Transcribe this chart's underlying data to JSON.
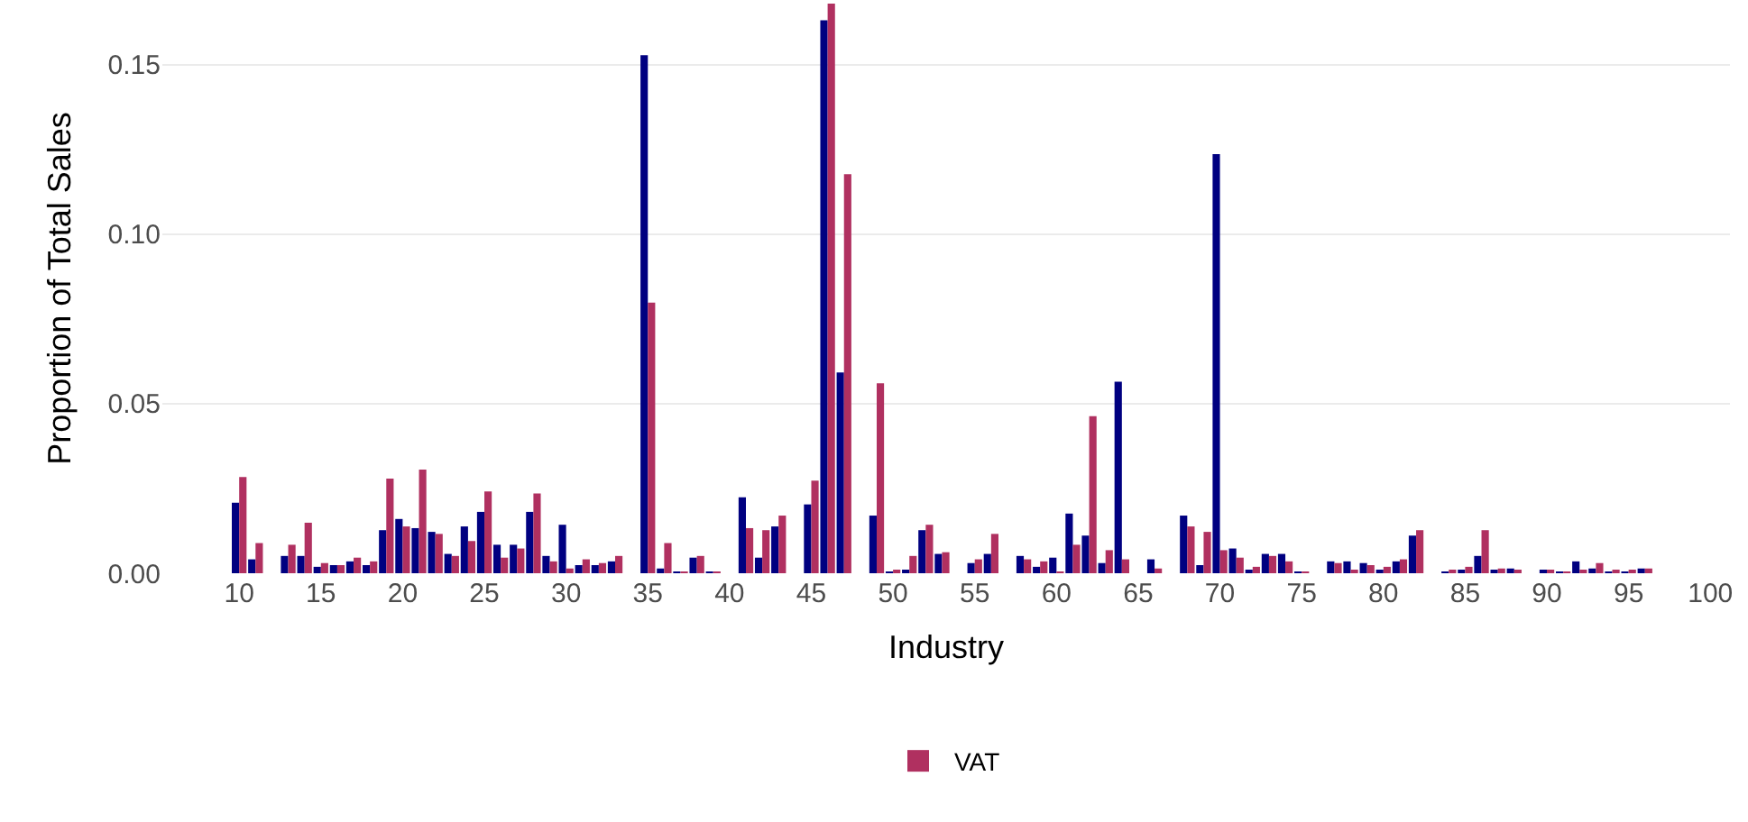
{
  "chart_data": {
    "type": "bar",
    "xlabel": "Industry",
    "ylabel": "Proportion of Total Sales",
    "x": [
      10,
      11,
      13,
      14,
      15,
      16,
      17,
      18,
      19,
      20,
      21,
      22,
      23,
      24,
      25,
      26,
      27,
      28,
      29,
      30,
      31,
      32,
      33,
      35,
      36,
      37,
      38,
      39,
      41,
      42,
      43,
      45,
      46,
      47,
      49,
      50,
      51,
      52,
      53,
      55,
      56,
      58,
      59,
      60,
      61,
      62,
      63,
      64,
      66,
      68,
      69,
      70,
      71,
      72,
      73,
      74,
      75,
      77,
      78,
      79,
      80,
      81,
      82,
      84,
      85,
      86,
      87,
      88,
      90,
      91,
      92,
      93,
      94,
      95,
      96
    ],
    "series": [
      {
        "color": "#000080",
        "values": [
          0.0208,
          0.0041,
          0.0051,
          0.0051,
          0.0019,
          0.0024,
          0.0035,
          0.0024,
          0.0127,
          0.016,
          0.0133,
          0.0122,
          0.0057,
          0.0138,
          0.0181,
          0.0084,
          0.0084,
          0.0181,
          0.0051,
          0.0143,
          0.0024,
          0.0024,
          0.0035,
          0.1528,
          0.0014,
          0.0003,
          0.0046,
          0.0003,
          0.0224,
          0.0046,
          0.0138,
          0.0203,
          0.1631,
          0.0592,
          0.017,
          0.0003,
          0.0008,
          0.0127,
          0.0057,
          0.003,
          0.0057,
          0.0051,
          0.0019,
          0.0046,
          0.0176,
          0.0111,
          0.003,
          0.0565,
          0.0041,
          0.017,
          0.0024,
          0.1236,
          0.0073,
          0.0008,
          0.0057,
          0.0057,
          0.0003,
          0.0035,
          0.0035,
          0.003,
          0.0008,
          0.0035,
          0.0111,
          0.0003,
          0.0008,
          0.0051,
          0.0008,
          0.0014,
          0.0008,
          0.0003,
          0.0035,
          0.0014,
          0.0003,
          0.0003,
          0.0014
        ]
      },
      {
        "name": "VAT",
        "color": "#b03060",
        "values": [
          0.0284,
          0.0089,
          0.0084,
          0.0149,
          0.003,
          0.0024,
          0.0046,
          0.0035,
          0.0279,
          0.0138,
          0.0306,
          0.0116,
          0.0051,
          0.0095,
          0.0241,
          0.0046,
          0.0073,
          0.0235,
          0.0035,
          0.0014,
          0.0041,
          0.003,
          0.0051,
          0.0798,
          0.0089,
          0.0003,
          0.0051,
          0.0003,
          0.0133,
          0.0127,
          0.017,
          0.0273,
          0.168,
          0.1177,
          0.056,
          0.0008,
          0.0051,
          0.0143,
          0.0062,
          0.0041,
          0.0116,
          0.0041,
          0.0035,
          0.0003,
          0.0084,
          0.0463,
          0.0068,
          0.0041,
          0.0014,
          0.0138,
          0.0122,
          0.0068,
          0.0046,
          0.0019,
          0.0051,
          0.0035,
          0.0003,
          0.003,
          0.0008,
          0.0024,
          0.0019,
          0.0041,
          0.0127,
          0.0008,
          0.0019,
          0.0127,
          0.0014,
          0.0008,
          0.0008,
          0.0003,
          0.0008,
          0.003,
          0.0008,
          0.0008,
          0.0014
        ]
      }
    ],
    "xlim": [
      5.3,
      101.2
    ],
    "xticks": [
      10,
      15,
      20,
      25,
      30,
      35,
      40,
      45,
      50,
      55,
      60,
      65,
      70,
      75,
      80,
      85,
      90,
      95,
      100
    ],
    "ylim": [
      0,
      0.168
    ],
    "yticks": [
      {
        "value": 0,
        "label": "0.00"
      },
      {
        "value": 0.05,
        "label": "0.05"
      },
      {
        "value": 0.1,
        "label": "0.10"
      },
      {
        "value": 0.15,
        "label": "0.15"
      }
    ],
    "grid": "y",
    "legend": "bottom"
  }
}
